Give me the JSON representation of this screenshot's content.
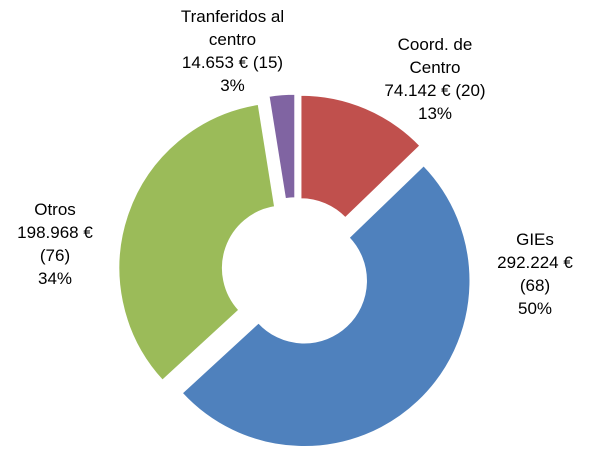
{
  "chart_data": {
    "type": "donut",
    "categories": [
      "Coord. de Centro",
      "GIEs",
      "Otros",
      "Tranferidos al centro"
    ],
    "values": [
      74142,
      292224,
      198968,
      14653
    ],
    "value_labels": [
      "74.142 €",
      "292.224 €",
      "198.968 €",
      "14.653 €"
    ],
    "count_labels": [
      "(20)",
      "(68)",
      "(76)",
      "(15)"
    ],
    "percent_labels": [
      "13%",
      "50%",
      "34%",
      "3%"
    ],
    "colors": [
      "#c0504d",
      "#4f81bd",
      "#9bbb59",
      "#8064a2"
    ]
  }
}
